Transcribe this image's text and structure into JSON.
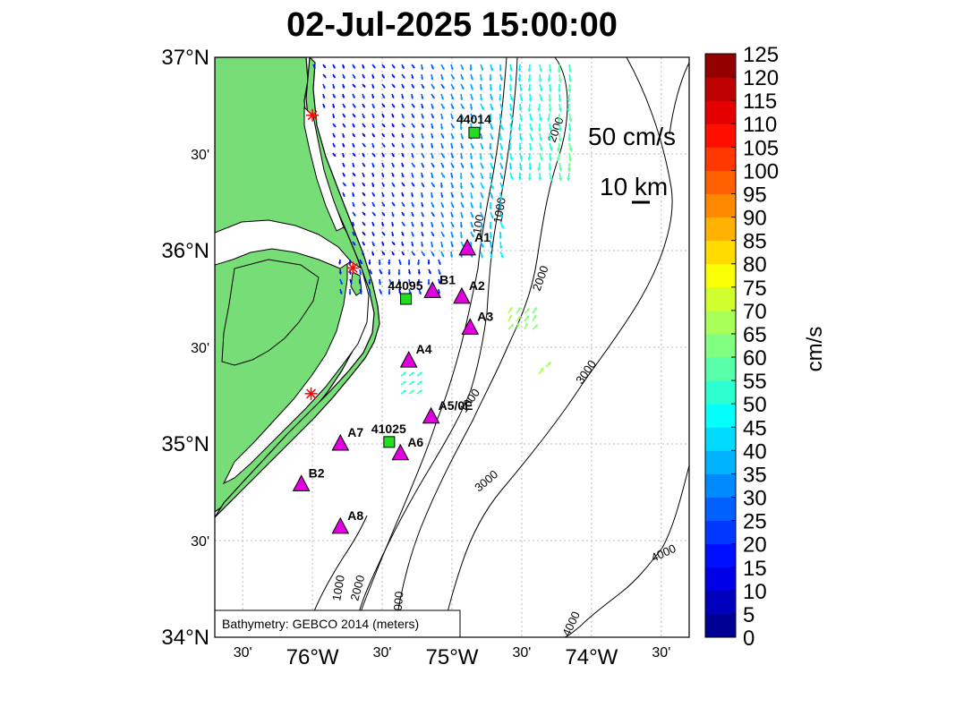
{
  "title": "02-Jul-2025 15:00:00",
  "map": {
    "lat_ticks": [
      {
        "lat": 37.0,
        "label": "37°N",
        "major": true
      },
      {
        "lat": 36.5,
        "label": "30'",
        "major": false
      },
      {
        "lat": 36.0,
        "label": "36°N",
        "major": true
      },
      {
        "lat": 35.5,
        "label": "30'",
        "major": false
      },
      {
        "lat": 35.0,
        "label": "35°N",
        "major": true
      },
      {
        "lat": 34.5,
        "label": "30'",
        "major": false
      },
      {
        "lat": 34.0,
        "label": "34°N",
        "major": true
      }
    ],
    "lon_ticks": [
      {
        "lon": -76.5,
        "label": "30'",
        "major": false
      },
      {
        "lon": -76.0,
        "label": "76°W",
        "major": true
      },
      {
        "lon": -75.5,
        "label": "30'",
        "major": false
      },
      {
        "lon": -75.0,
        "label": "75°W",
        "major": true
      },
      {
        "lon": -74.5,
        "label": "30'",
        "major": false
      },
      {
        "lon": -74.0,
        "label": "74°W",
        "major": true
      },
      {
        "lon": -73.5,
        "label": "30'",
        "major": false
      }
    ],
    "bathymetry_note": "Bathymetry: GEBCO 2014 (meters)",
    "contour_labels": [
      "100",
      "1000",
      "2000",
      "3000",
      "4000",
      "100E"
    ],
    "scale": {
      "speed_label": "50 cm/s",
      "distance_label": "10 km"
    },
    "stations": [
      {
        "id": "A1",
        "label": "A1",
        "type": "triangle",
        "lon": -74.89,
        "lat": 36.01
      },
      {
        "id": "B1",
        "label": "B1",
        "type": "triangle",
        "lon": -75.14,
        "lat": 35.79
      },
      {
        "id": "A2",
        "label": "A2",
        "type": "triangle",
        "lon": -74.93,
        "lat": 35.76
      },
      {
        "id": "A3",
        "label": "A3",
        "type": "triangle",
        "lon": -74.87,
        "lat": 35.6
      },
      {
        "id": "A4",
        "label": "A4",
        "type": "triangle",
        "lon": -75.31,
        "lat": 35.43
      },
      {
        "id": "A5",
        "label": "A5/0E",
        "type": "triangle",
        "lon": -75.15,
        "lat": 35.14
      },
      {
        "id": "A7",
        "label": "A7",
        "type": "triangle",
        "lon": -75.8,
        "lat": 35.0
      },
      {
        "id": "A6",
        "label": "A6",
        "type": "triangle",
        "lon": -75.37,
        "lat": 34.95
      },
      {
        "id": "B2",
        "label": "B2",
        "type": "triangle",
        "lon": -76.08,
        "lat": 34.79
      },
      {
        "id": "A8",
        "label": "A8",
        "type": "triangle",
        "lon": -75.8,
        "lat": 34.57
      },
      {
        "id": "44014",
        "label": "44014",
        "type": "buoy",
        "lon": -74.84,
        "lat": 36.61
      },
      {
        "id": "44095",
        "label": "44095",
        "type": "buoy",
        "lon": -75.33,
        "lat": 35.75
      },
      {
        "id": "41025",
        "label": "41025",
        "type": "buoy",
        "lon": -75.45,
        "lat": 35.01
      }
    ],
    "radar_sites": [
      {
        "name": "radar-north",
        "lon": -76.0,
        "lat": 36.7
      },
      {
        "name": "radar-middle",
        "lon": -75.71,
        "lat": 35.91
      },
      {
        "name": "radar-south",
        "lon": -76.01,
        "lat": 35.26
      }
    ],
    "colors": {
      "land": "#77dd77",
      "station_triangle": "#e000e0",
      "buoy": "#22dd22",
      "radar": "#ff0000"
    }
  },
  "colorbar": {
    "unit_label": "cm/s",
    "min": 0,
    "max": 125,
    "step": 5,
    "tick_labels": [
      "0",
      "5",
      "10",
      "15",
      "20",
      "25",
      "30",
      "35",
      "40",
      "45",
      "50",
      "55",
      "60",
      "65",
      "70",
      "75",
      "80",
      "85",
      "90",
      "95",
      "100",
      "105",
      "110",
      "115",
      "120",
      "125"
    ]
  }
}
